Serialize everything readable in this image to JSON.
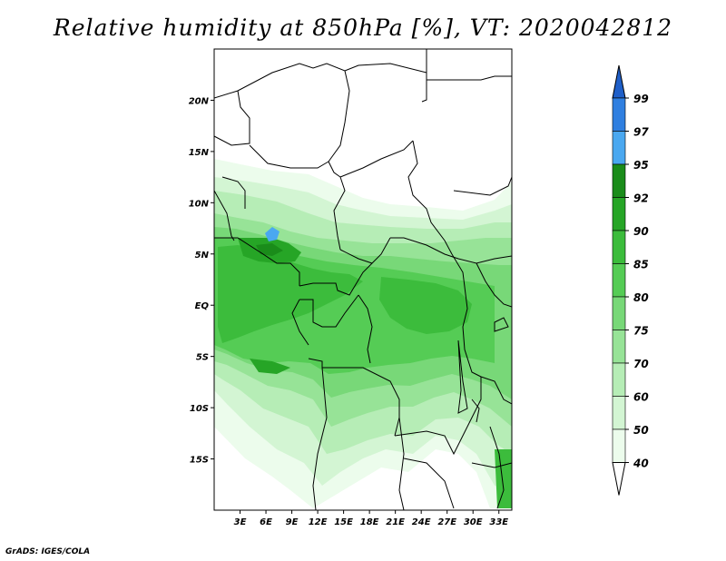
{
  "title": "Relative humidity at 850hPa [%], VT: 2020042812",
  "credit": "GrADS: IGES/COLA",
  "map": {
    "lat_labels": [
      {
        "lat": 20,
        "text": "20N"
      },
      {
        "lat": 15,
        "text": "15N"
      },
      {
        "lat": 10,
        "text": "10N"
      },
      {
        "lat": 5,
        "text": "5N"
      },
      {
        "lat": 0,
        "text": "EQ"
      },
      {
        "lat": -5,
        "text": "5S"
      },
      {
        "lat": -10,
        "text": "10S"
      },
      {
        "lat": -15,
        "text": "15S"
      }
    ],
    "lon_labels": [
      {
        "lon": 3,
        "text": "3E"
      },
      {
        "lon": 6,
        "text": "6E"
      },
      {
        "lon": 9,
        "text": "9E"
      },
      {
        "lon": 12,
        "text": "12E"
      },
      {
        "lon": 15,
        "text": "15E"
      },
      {
        "lon": 18,
        "text": "18E"
      },
      {
        "lon": 21,
        "text": "21E"
      },
      {
        "lon": 24,
        "text": "24E"
      },
      {
        "lon": 27,
        "text": "27E"
      },
      {
        "lon": 30,
        "text": "30E"
      },
      {
        "lon": 33,
        "text": "33E"
      }
    ],
    "lon_range": [
      0,
      34.5
    ],
    "lat_range": [
      -20,
      25
    ]
  },
  "colorbar": {
    "levels": [
      "99",
      "97",
      "95",
      "92",
      "90",
      "85",
      "80",
      "75",
      "70",
      "60",
      "50",
      "40"
    ],
    "colors": [
      "#1f5fc8",
      "#2f7fe0",
      "#4aa8f0",
      "#1a8c1a",
      "#26a526",
      "#3cbc3c",
      "#55cc55",
      "#78d878",
      "#97e397",
      "#b6edb6",
      "#d3f5d3",
      "#ecfcec"
    ]
  }
}
